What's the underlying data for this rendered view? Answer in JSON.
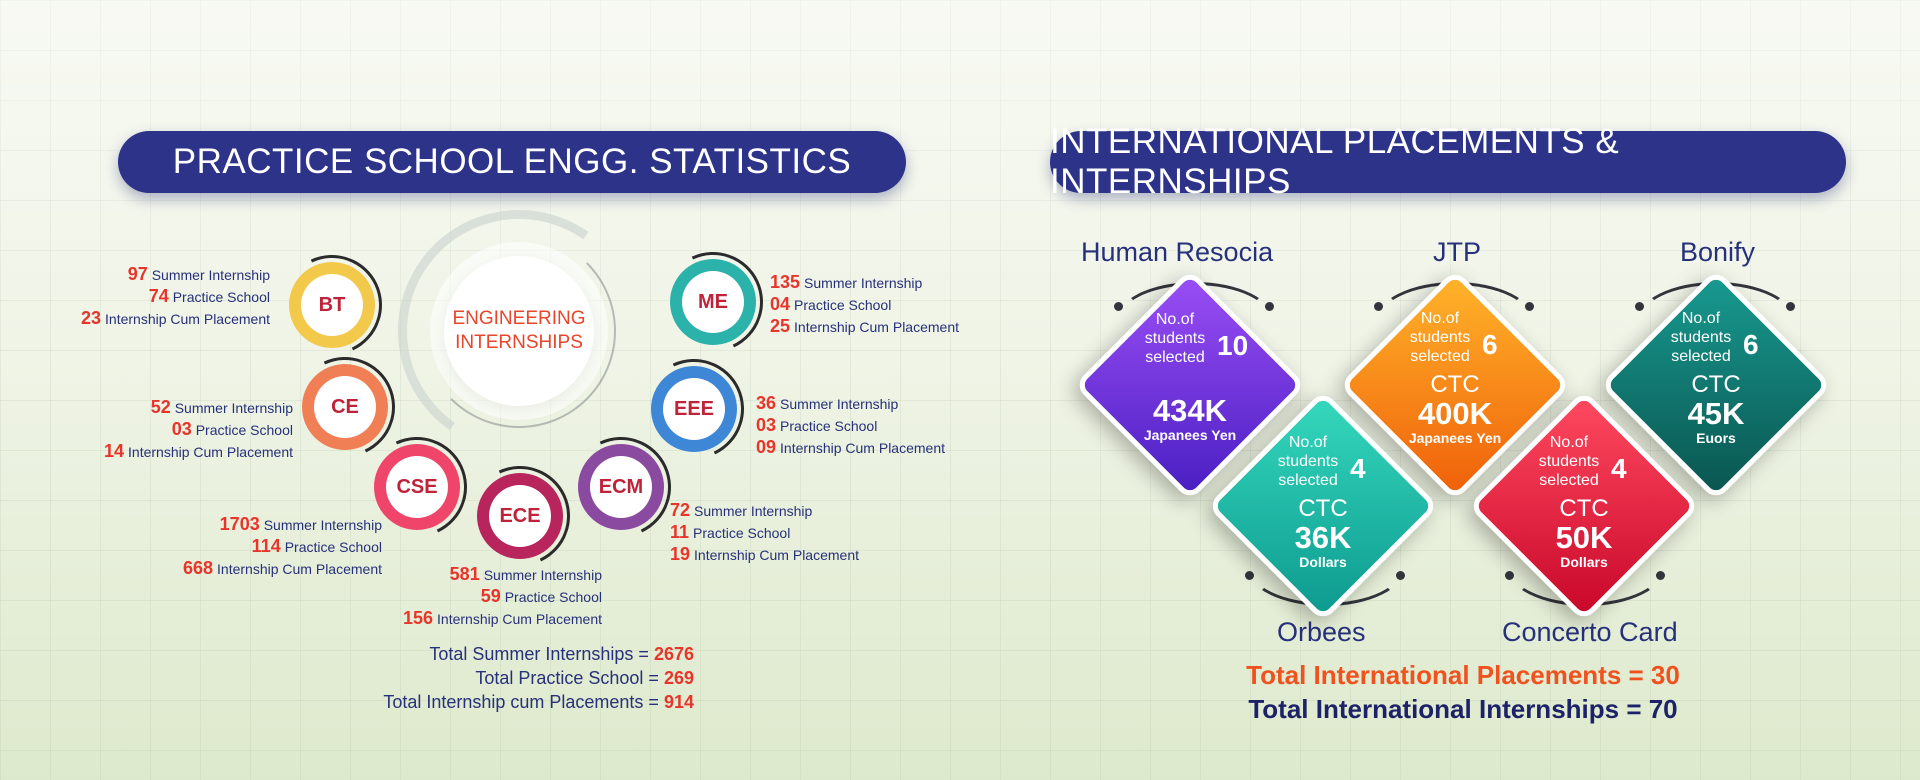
{
  "left": {
    "title": "PRACTICE SCHOOL ENGG. STATISTICS",
    "center": {
      "line1": "ENGINEERING",
      "line2": "INTERNSHIPS"
    },
    "labels": {
      "summer": "Summer Internship",
      "practice": "Practice School",
      "cum": "Internship Cum Placement"
    },
    "departments": [
      {
        "code": "BT",
        "summer": "97",
        "practice": "74",
        "cum": "23",
        "color": "#f3c94b"
      },
      {
        "code": "CE",
        "summer": "52",
        "practice": "03",
        "cum": "14",
        "color": "#f07f55"
      },
      {
        "code": "CSE",
        "summer": "1703",
        "practice": "114",
        "cum": "668",
        "color": "#f0456a"
      },
      {
        "code": "ECE",
        "summer": "581",
        "practice": "59",
        "cum": "156",
        "color": "#b8245c"
      },
      {
        "code": "ECM",
        "summer": "72",
        "practice": "11",
        "cum": "19",
        "color": "#8a4aa0"
      },
      {
        "code": "EEE",
        "summer": "36",
        "practice": "03",
        "cum": "09",
        "color": "#3e87d6"
      },
      {
        "code": "ME",
        "summer": "135",
        "practice": "04",
        "cum": "25",
        "color": "#2bb2aa"
      }
    ],
    "totals": [
      {
        "label": "Total Summer Internships = ",
        "value": "2676"
      },
      {
        "label": "Total Practice School = ",
        "value": "269"
      },
      {
        "label": "Total Internship cum Placements = ",
        "value": "914"
      }
    ]
  },
  "right": {
    "title": "INTERNATIONAL PLACEMENTS & INTERNSHIPS",
    "selected_label_1": "No.of",
    "selected_label_2": "students",
    "selected_label_3": "selected",
    "cards": [
      {
        "company": "Human Resocia",
        "count": "10",
        "ctc_label": "",
        "amount": "434K",
        "currency": "Japanees Yen",
        "color_top": "#8a3df0",
        "color_bottom": "#4a1fc2"
      },
      {
        "company": "Orbees",
        "count": "4",
        "ctc_label": "CTC",
        "amount": "36K",
        "currency": "Dollars",
        "color_top": "#2ed1b5",
        "color_bottom": "#0f9e92"
      },
      {
        "company": "JTP",
        "count": "6",
        "ctc_label": "CTC",
        "amount": "400K",
        "currency": "Japanees Yen",
        "color_top": "#ffab24",
        "color_bottom": "#f26a0c"
      },
      {
        "company": "Concerto Card",
        "count": "4",
        "ctc_label": "CTC",
        "amount": "50K",
        "currency": "Dollars",
        "color_top": "#ff3d57",
        "color_bottom": "#cf0a2c"
      },
      {
        "company": "Bonify",
        "count": "6",
        "ctc_label": "CTC",
        "amount": "45K",
        "currency": "Euors",
        "color_top": "#14857e",
        "color_bottom": "#0b5a55"
      }
    ],
    "total_placements": "Total International Placements = 30",
    "total_internships": "Total International Internships = 70",
    "colors": {
      "placements": "#f0521f",
      "internships": "#1d2268"
    }
  }
}
